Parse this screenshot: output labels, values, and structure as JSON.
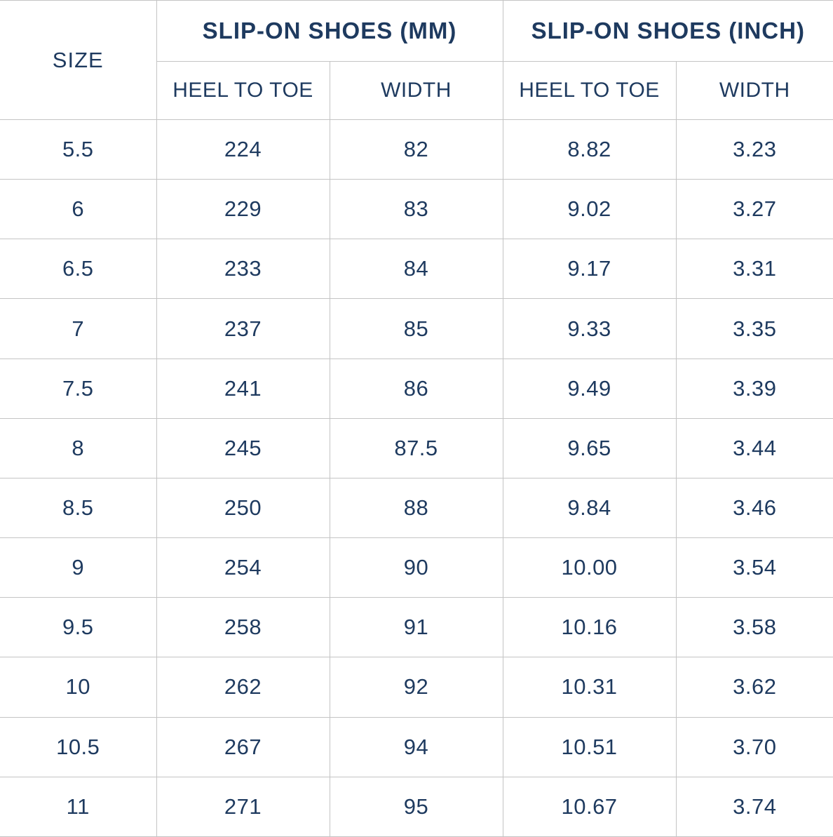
{
  "chart_data": {
    "type": "table",
    "header": {
      "size_label": "SIZE",
      "groups": [
        {
          "label": "SLIP-ON SHOES (MM)",
          "colspan": 2
        },
        {
          "label": "SLIP-ON SHOES (INCH)",
          "colspan": 2
        }
      ],
      "subheaders": [
        "HEEL TO TOE",
        "WIDTH",
        "HEEL TO TOE",
        "WIDTH"
      ]
    },
    "columns": [
      "SIZE",
      "HEEL TO TOE (MM)",
      "WIDTH (MM)",
      "HEEL TO TOE (INCH)",
      "WIDTH (INCH)"
    ],
    "rows": [
      [
        "5.5",
        "224",
        "82",
        "8.82",
        "3.23"
      ],
      [
        "6",
        "229",
        "83",
        "9.02",
        "3.27"
      ],
      [
        "6.5",
        "233",
        "84",
        "9.17",
        "3.31"
      ],
      [
        "7",
        "237",
        "85",
        "9.33",
        "3.35"
      ],
      [
        "7.5",
        "241",
        "86",
        "9.49",
        "3.39"
      ],
      [
        "8",
        "245",
        "87.5",
        "9.65",
        "3.44"
      ],
      [
        "8.5",
        "250",
        "88",
        "9.84",
        "3.46"
      ],
      [
        "9",
        "254",
        "90",
        "10.00",
        "3.54"
      ],
      [
        "9.5",
        "258",
        "91",
        "10.16",
        "3.58"
      ],
      [
        "10",
        "262",
        "92",
        "10.31",
        "3.62"
      ],
      [
        "10.5",
        "267",
        "94",
        "10.51",
        "3.70"
      ],
      [
        "11",
        "271",
        "95",
        "10.67",
        "3.74"
      ]
    ],
    "layout": {
      "grid": true,
      "outer_left_right_border": false
    }
  },
  "colors": {
    "text_navy": "#1e3a5f",
    "border_gray": "#c4c4c4",
    "background": "#ffffff"
  }
}
